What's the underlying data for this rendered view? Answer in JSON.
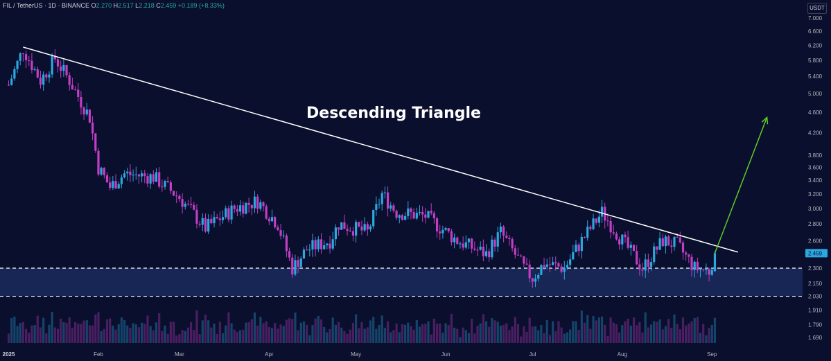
{
  "header": {
    "symbol": "FIL / TetherUS · 1D · BINANCE",
    "o_label": "O",
    "o_value": "2.270",
    "h_label": "H",
    "h_value": "2.517",
    "l_label": "L",
    "l_value": "2.218",
    "c_label": "C",
    "c_value": "2.459",
    "change": "+0.189 (+8.33%)"
  },
  "currency": "USDT",
  "colors": {
    "background": "#0a0f2d",
    "up": "#2aa8e0",
    "down": "#c23ec5",
    "trendline": "#ffffff",
    "arrow": "#5ecb2a",
    "support_zone": "#1a2a5c"
  },
  "annotation": {
    "title": "Descending Triangle"
  },
  "last_price_label": "2.459",
  "chart_data": {
    "type": "candlestick",
    "title": "Descending Triangle",
    "y_scale": "log",
    "y_ticks": [
      "7.000",
      "6.600",
      "6.200",
      "5.800",
      "5.400",
      "5.000",
      "4.600",
      "4.200",
      "3.800",
      "3.600",
      "3.400",
      "3.200",
      "3.000",
      "2.800",
      "2.600",
      "2.459",
      "2.300",
      "2.150",
      "2.030",
      "1.910",
      "1.790",
      "1.690"
    ],
    "x_ticks": [
      "2025",
      "Feb",
      "Mar",
      "Apr",
      "May",
      "Jun",
      "Jul",
      "Aug",
      "Sep"
    ],
    "last_close": 2.459,
    "support_zone": [
      2.03,
      2.3
    ],
    "resistance_trendline": [
      {
        "date": "2025-01-06",
        "price": 6.15
      },
      {
        "date": "2025-09-10",
        "price": 2.47
      }
    ],
    "breakout_target": 4.5,
    "price_path": [
      {
        "date": "2025-01-01",
        "price": 5.2
      },
      {
        "date": "2025-01-06",
        "price": 6.1
      },
      {
        "date": "2025-01-12",
        "price": 5.3
      },
      {
        "date": "2025-01-17",
        "price": 5.85
      },
      {
        "date": "2025-01-22",
        "price": 5.3
      },
      {
        "date": "2025-01-29",
        "price": 4.5
      },
      {
        "date": "2025-02-01",
        "price": 3.6
      },
      {
        "date": "2025-02-05",
        "price": 3.3
      },
      {
        "date": "2025-02-10",
        "price": 3.5
      },
      {
        "date": "2025-02-20",
        "price": 3.45
      },
      {
        "date": "2025-03-01",
        "price": 3.15
      },
      {
        "date": "2025-03-10",
        "price": 2.75
      },
      {
        "date": "2025-03-20",
        "price": 3.0
      },
      {
        "date": "2025-03-28",
        "price": 3.1
      },
      {
        "date": "2025-04-04",
        "price": 2.8
      },
      {
        "date": "2025-04-09",
        "price": 2.3
      },
      {
        "date": "2025-04-14",
        "price": 2.5
      },
      {
        "date": "2025-04-22",
        "price": 2.6
      },
      {
        "date": "2025-04-25",
        "price": 2.8
      },
      {
        "date": "2025-05-05",
        "price": 2.7
      },
      {
        "date": "2025-05-10",
        "price": 3.2
      },
      {
        "date": "2025-05-15",
        "price": 2.95
      },
      {
        "date": "2025-05-25",
        "price": 2.9
      },
      {
        "date": "2025-06-05",
        "price": 2.6
      },
      {
        "date": "2025-06-15",
        "price": 2.45
      },
      {
        "date": "2025-06-20",
        "price": 2.7
      },
      {
        "date": "2025-06-28",
        "price": 2.3
      },
      {
        "date": "2025-07-01",
        "price": 2.2
      },
      {
        "date": "2025-07-05",
        "price": 2.35
      },
      {
        "date": "2025-07-12",
        "price": 2.3
      },
      {
        "date": "2025-07-18",
        "price": 2.6
      },
      {
        "date": "2025-07-25",
        "price": 2.95
      },
      {
        "date": "2025-08-01",
        "price": 2.6
      },
      {
        "date": "2025-08-08",
        "price": 2.3
      },
      {
        "date": "2025-08-15",
        "price": 2.6
      },
      {
        "date": "2025-08-20",
        "price": 2.55
      },
      {
        "date": "2025-08-26",
        "price": 2.3
      },
      {
        "date": "2025-08-31",
        "price": 2.27
      },
      {
        "date": "2025-09-02",
        "price": 2.459
      }
    ]
  }
}
